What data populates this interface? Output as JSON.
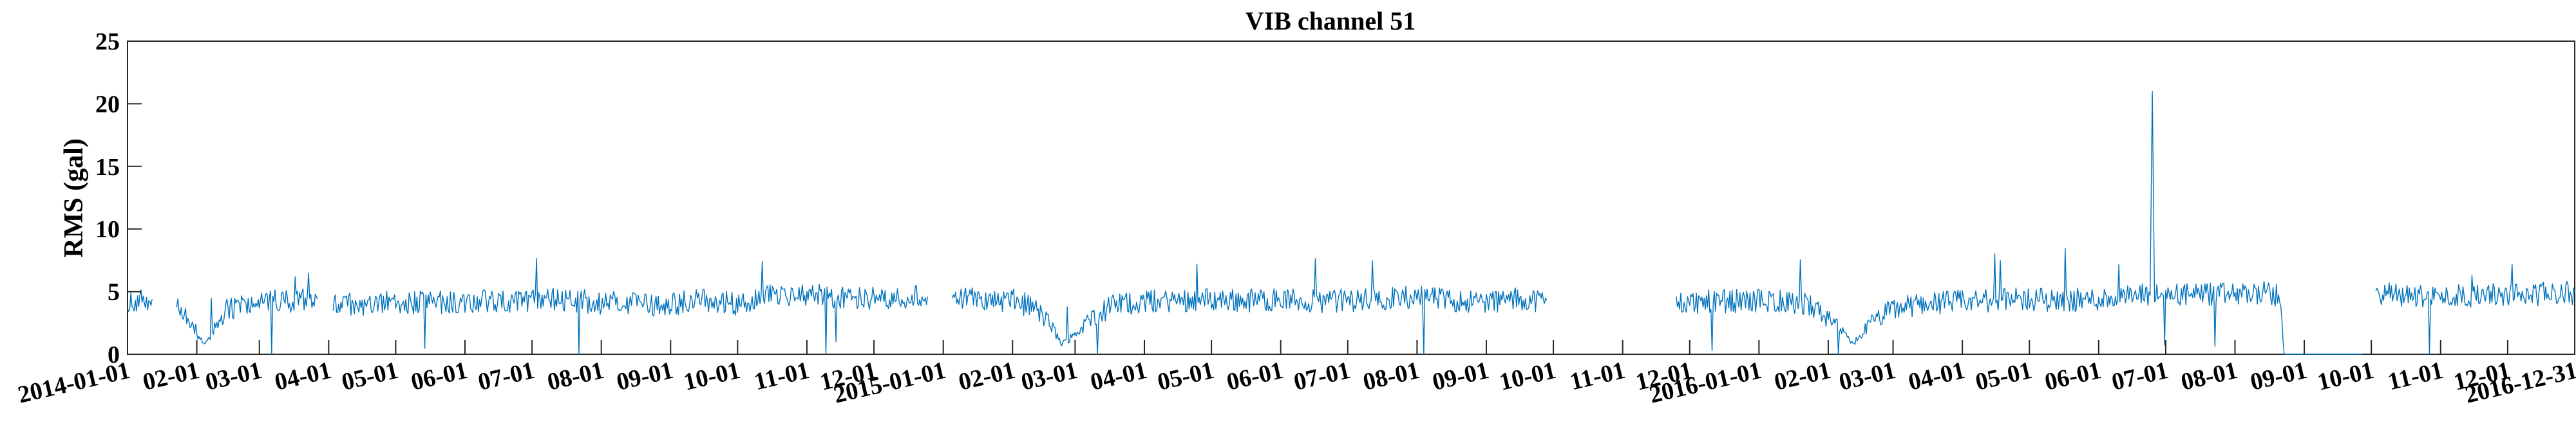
{
  "chart_data": {
    "type": "line",
    "title": "VIB channel 51",
    "xlabel": "",
    "ylabel": "RMS (gal)",
    "ylim": [
      0,
      25
    ],
    "yticks": [
      0,
      5,
      10,
      15,
      20,
      25
    ],
    "xlim": [
      "2014-01-01",
      "2016-12-31"
    ],
    "xtick_labels": [
      "2014-01-01",
      "02-01",
      "03-01",
      "04-01",
      "05-01",
      "06-01",
      "07-01",
      "08-01",
      "09-01",
      "10-01",
      "11-01",
      "12-01",
      "2015-01-01",
      "02-01",
      "03-01",
      "04-01",
      "05-01",
      "06-01",
      "07-01",
      "08-01",
      "09-01",
      "10-01",
      "11-01",
      "12-01",
      "2016-01-01",
      "02-01",
      "03-01",
      "04-01",
      "05-01",
      "06-01",
      "07-01",
      "08-01",
      "09-01",
      "10-01",
      "11-01",
      "12-01",
      "2016-12-31"
    ],
    "grid": false,
    "line_color": "#0072BD",
    "series": [
      {
        "values": [
          [
            "2014-01-01",
            4.2
          ],
          [
            "2014-01-06",
            4.3
          ],
          [
            "2014-01-12",
            4.4
          ],
          [
            "2014-01-13",
            null
          ],
          [
            "2014-01-23",
            3.8
          ],
          [
            "2014-01-28",
            2.8
          ],
          [
            "2014-02-02",
            1.5
          ],
          [
            "2014-02-05",
            0.9
          ],
          [
            "2014-02-10",
            2.4
          ],
          [
            "2014-02-15",
            3.6
          ],
          [
            "2014-02-22",
            4.1
          ],
          [
            "2014-03-01",
            4.3
          ],
          [
            "2014-03-10",
            4.2
          ],
          [
            "2014-03-20",
            4.3
          ],
          [
            "2014-03-27",
            4.4
          ],
          [
            "2014-03-28",
            null
          ],
          [
            "2014-04-03",
            4.1
          ],
          [
            "2014-04-15",
            4.0
          ],
          [
            "2014-05-01",
            4.2
          ],
          [
            "2014-05-15",
            4.1
          ],
          [
            "2014-06-01",
            4.2
          ],
          [
            "2014-06-15",
            4.3
          ],
          [
            "2014-07-01",
            4.2
          ],
          [
            "2014-07-15",
            4.4
          ],
          [
            "2014-08-01",
            4.1
          ],
          [
            "2014-08-15",
            4.0
          ],
          [
            "2014-09-01",
            4.0
          ],
          [
            "2014-09-15",
            4.3
          ],
          [
            "2014-10-01",
            4.0
          ],
          [
            "2014-10-15",
            4.6
          ],
          [
            "2014-11-01",
            4.7
          ],
          [
            "2014-11-15",
            4.6
          ],
          [
            "2014-12-01",
            4.5
          ],
          [
            "2014-12-15",
            4.6
          ],
          [
            "2014-12-25",
            4.6
          ],
          [
            "2014-12-26",
            null
          ],
          [
            "2015-01-05",
            4.3
          ],
          [
            "2015-01-15",
            4.4
          ],
          [
            "2015-02-01",
            4.3
          ],
          [
            "2015-02-10",
            3.8
          ],
          [
            "2015-02-18",
            2.4
          ],
          [
            "2015-02-23",
            0.8
          ],
          [
            "2015-03-01",
            1.6
          ],
          [
            "2015-03-10",
            3.2
          ],
          [
            "2015-03-20",
            4.0
          ],
          [
            "2015-04-01",
            4.2
          ],
          [
            "2015-04-15",
            4.3
          ],
          [
            "2015-05-01",
            4.4
          ],
          [
            "2015-05-15",
            4.3
          ],
          [
            "2015-06-01",
            4.4
          ],
          [
            "2015-06-15",
            4.2
          ],
          [
            "2015-07-01",
            4.3
          ],
          [
            "2015-07-15",
            4.4
          ],
          [
            "2015-08-01",
            4.6
          ],
          [
            "2015-08-15",
            4.3
          ],
          [
            "2015-09-01",
            4.2
          ],
          [
            "2015-09-15",
            4.4
          ],
          [
            "2015-09-28",
            4.3
          ],
          [
            "2015-09-29",
            null
          ],
          [
            "2015-11-25",
            4.1
          ],
          [
            "2015-12-10",
            4.2
          ],
          [
            "2016-01-01",
            4.3
          ],
          [
            "2016-01-15",
            4.2
          ],
          [
            "2016-01-25",
            3.8
          ],
          [
            "2016-02-05",
            2.2
          ],
          [
            "2016-02-12",
            0.8
          ],
          [
            "2016-02-20",
            2.5
          ],
          [
            "2016-03-01",
            3.6
          ],
          [
            "2016-03-15",
            4.1
          ],
          [
            "2016-04-01",
            4.2
          ],
          [
            "2016-04-15",
            4.3
          ],
          [
            "2016-05-01",
            4.4
          ],
          [
            "2016-05-15",
            4.3
          ],
          [
            "2016-06-01",
            4.4
          ],
          [
            "2016-06-15",
            4.6
          ],
          [
            "2016-06-24",
            4.7
          ],
          [
            "2016-06-25",
            21.0
          ],
          [
            "2016-06-26",
            4.7
          ],
          [
            "2016-07-05",
            4.8
          ],
          [
            "2016-07-15",
            4.7
          ],
          [
            "2016-08-01",
            4.8
          ],
          [
            "2016-08-15",
            4.9
          ],
          [
            "2016-08-21",
            4.6
          ],
          [
            "2016-08-23",
            0.0
          ],
          [
            "2016-09-10",
            0.0
          ],
          [
            "2016-09-27",
            0.0
          ],
          [
            "2016-09-28",
            null
          ],
          [
            "2016-10-03",
            4.9
          ],
          [
            "2016-10-15",
            4.7
          ],
          [
            "2016-11-01",
            4.6
          ],
          [
            "2016-11-15",
            4.7
          ],
          [
            "2016-12-01",
            4.7
          ],
          [
            "2016-12-15",
            4.8
          ],
          [
            "2016-12-31",
            4.9
          ]
        ]
      }
    ]
  }
}
